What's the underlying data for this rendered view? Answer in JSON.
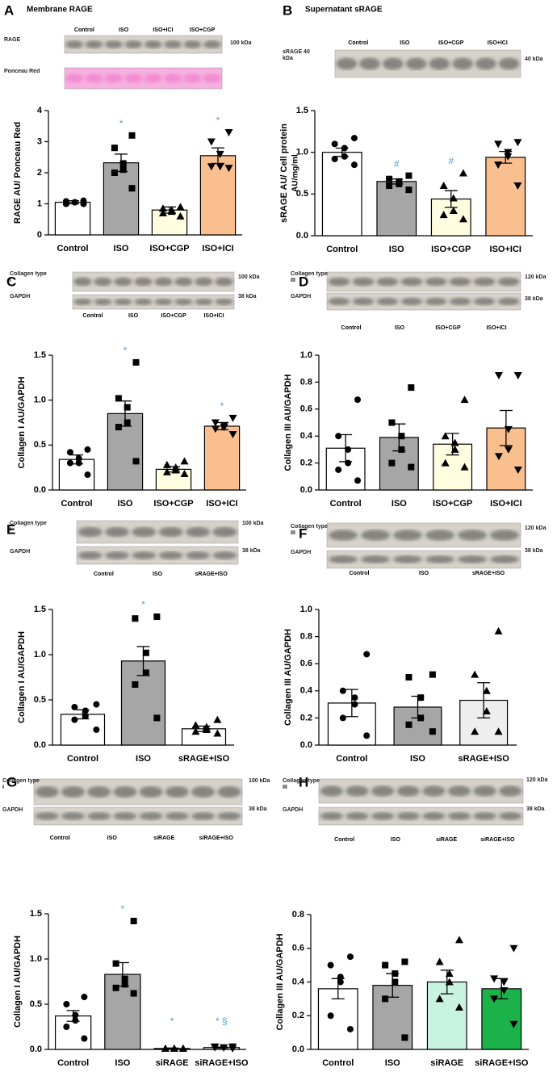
{
  "chart_data": [
    {
      "type": "bar",
      "panel": "A",
      "title": "Membrane RAGE",
      "ylabel": "RAGE AU/ Ponceau Red",
      "categories": [
        "Control",
        "ISO",
        "ISO+CGP",
        "ISO+ICI"
      ],
      "values": [
        1.05,
        2.32,
        0.8,
        2.55
      ],
      "errors": [
        0.05,
        0.28,
        0.1,
        0.25
      ],
      "points": [
        [
          1.1,
          1.08,
          1.05,
          1.05,
          1.0,
          1.0
        ],
        [
          3.2,
          2.8,
          2.3,
          2.1,
          2.0,
          1.5
        ],
        [
          0.9,
          0.85,
          0.8,
          0.75,
          0.7,
          0.6
        ],
        [
          3.3,
          3.0,
          2.6,
          2.2,
          2.2,
          2.15
        ]
      ],
      "colors": [
        "#ffffff",
        "#a6a6a6",
        "#fffde0",
        "#f9bf8f"
      ],
      "markers": [
        "circle",
        "square",
        "triangle",
        "triangle-down"
      ],
      "significance": [
        null,
        "*",
        null,
        "*"
      ],
      "ylim": [
        0,
        4
      ],
      "yticks": [
        0,
        1,
        2,
        3,
        4
      ],
      "blot": {
        "lanes": [
          "Control",
          "ISO",
          "ISO+ICI",
          "ISO+CGP"
        ],
        "bands": [
          "RAGE",
          "Ponceau Red"
        ],
        "sizes": [
          "100 kDa"
        ]
      }
    },
    {
      "type": "bar",
      "panel": "B",
      "title": "Supernatant sRAGE",
      "ylabel": "sRAGE AU/ Cell protein",
      "unit_label": "AU/mg/ml",
      "categories": [
        "Control",
        "ISO",
        "ISO+CGP",
        "ISO+ICI"
      ],
      "values": [
        1.0,
        0.65,
        0.44,
        0.94
      ],
      "errors": [
        0.05,
        0.03,
        0.1,
        0.07
      ],
      "points": [
        [
          1.17,
          1.1,
          1.05,
          0.95,
          0.92,
          0.85
        ],
        [
          0.72,
          0.68,
          0.65,
          0.62,
          0.6,
          0.55
        ],
        [
          0.75,
          0.6,
          0.45,
          0.3,
          0.25,
          0.2
        ],
        [
          1.12,
          1.1,
          1.0,
          0.95,
          0.85,
          0.6
        ]
      ],
      "colors": [
        "#ffffff",
        "#a6a6a6",
        "#fffde0",
        "#f9bf8f"
      ],
      "markers": [
        "circle",
        "square",
        "triangle",
        "triangle-down"
      ],
      "significance": [
        null,
        "#",
        "#",
        null
      ],
      "ylim": [
        0,
        1.5
      ],
      "yticks": [
        {
          "value": 0,
          "label": "0.0"
        },
        0.5,
        {
          "value": 1,
          "label": "1.0"
        },
        1.5
      ],
      "blot": {
        "lanes": [
          "Control",
          "ISO",
          "ISO+CGP",
          "ISO+ICI"
        ],
        "bands": [
          "sRAGE 40 kDa"
        ],
        "sizes": [
          "40 kDa"
        ]
      }
    },
    {
      "type": "bar",
      "panel": "C",
      "ylabel": "Collagen I AU/GAPDH",
      "categories": [
        "Control",
        "ISO",
        "ISO+CGP",
        "ISO+ICI"
      ],
      "values": [
        0.34,
        0.85,
        0.23,
        0.71
      ],
      "errors": [
        0.05,
        0.14,
        0.03,
        0.04
      ],
      "points": [
        [
          0.45,
          0.42,
          0.35,
          0.3,
          0.3,
          0.17
        ],
        [
          1.42,
          1.02,
          0.92,
          0.75,
          0.7,
          0.32
        ],
        [
          0.32,
          0.28,
          0.25,
          0.22,
          0.2,
          0.18
        ],
        [
          0.8,
          0.75,
          0.72,
          0.7,
          0.68,
          0.62
        ]
      ],
      "colors": [
        "#ffffff",
        "#a6a6a6",
        "#fffde0",
        "#f9bf8f"
      ],
      "markers": [
        "circle",
        "square",
        "triangle",
        "triangle-down"
      ],
      "significance": [
        null,
        "*",
        null,
        "*"
      ],
      "ylim": [
        0,
        1.5
      ],
      "yticks": [
        {
          "value": 0,
          "label": "0.0"
        },
        0.5,
        {
          "value": 1,
          "label": "1.0"
        },
        1.5
      ],
      "blot": {
        "lanes": [
          "Control",
          "ISO",
          "ISO+CGP",
          "ISO+ICI"
        ],
        "bands": [
          "Collagen type I",
          "GAPDH"
        ],
        "sizes": [
          "100 kDa",
          "38 kDa"
        ]
      }
    },
    {
      "type": "bar",
      "panel": "D",
      "ylabel": "Collagen III  AU/GAPDH",
      "categories": [
        "Control",
        "ISO",
        "ISO+CGP",
        "ISO+ICI"
      ],
      "values": [
        0.31,
        0.39,
        0.34,
        0.46
      ],
      "errors": [
        0.1,
        0.1,
        0.08,
        0.13
      ],
      "points": [
        [
          0.67,
          0.4,
          0.3,
          0.2,
          0.15,
          0.07
        ],
        [
          0.76,
          0.5,
          0.4,
          0.3,
          0.2,
          0.17
        ],
        [
          0.67,
          0.4,
          0.35,
          0.3,
          0.2,
          0.17
        ],
        [
          0.85,
          0.85,
          0.45,
          0.3,
          0.25,
          0.15
        ]
      ],
      "colors": [
        "#ffffff",
        "#a6a6a6",
        "#fffde0",
        "#f9bf8f"
      ],
      "markers": [
        "circle",
        "square",
        "triangle",
        "triangle-down"
      ],
      "ylim": [
        0,
        1
      ],
      "yticks": [
        {
          "value": 0,
          "label": "0.0"
        },
        0.2,
        0.4,
        0.6,
        0.8,
        {
          "value": 1,
          "label": "1.0"
        }
      ],
      "blot": {
        "lanes": [
          "Control",
          "ISO",
          "ISO+CGP",
          "ISO+ICI"
        ],
        "bands": [
          "Collagen type III",
          "GAPDH"
        ],
        "sizes": [
          "120 kDa",
          "38 kDa"
        ]
      }
    },
    {
      "type": "bar",
      "panel": "E",
      "ylabel": "Collagen I AU/GAPDH",
      "categories": [
        "Control",
        "ISO",
        "sRAGE+ISO"
      ],
      "values": [
        0.34,
        0.93,
        0.18
      ],
      "errors": [
        0.05,
        0.16,
        0.03
      ],
      "points": [
        [
          0.45,
          0.42,
          0.38,
          0.32,
          0.28,
          0.17
        ],
        [
          1.42,
          1.4,
          1.02,
          0.8,
          0.67,
          0.3
        ],
        [
          0.28,
          0.22,
          0.2,
          0.17,
          0.15,
          0.13
        ]
      ],
      "colors": [
        "#ffffff",
        "#a6a6a6",
        "#ffffff"
      ],
      "markers": [
        "circle",
        "square",
        "triangle"
      ],
      "significance": [
        null,
        "*",
        null
      ],
      "ylim": [
        0,
        1.5
      ],
      "yticks": [
        {
          "value": 0,
          "label": "0.0"
        },
        0.5,
        {
          "value": 1,
          "label": "1.0"
        },
        1.5
      ],
      "blot": {
        "lanes": [
          "Control",
          "ISO",
          "sRAGE+ISO"
        ],
        "bands": [
          "Collagen type I",
          "GAPDH"
        ],
        "sizes": [
          "100 kDa",
          "38 kDa"
        ]
      }
    },
    {
      "type": "bar",
      "panel": "F",
      "ylabel": "Collagen III  AU/GAPDH",
      "categories": [
        "Control",
        "ISO",
        "sRAGE+ISO"
      ],
      "values": [
        0.31,
        0.28,
        0.33
      ],
      "errors": [
        0.1,
        0.08,
        0.13
      ],
      "points": [
        [
          0.67,
          0.4,
          0.35,
          0.3,
          0.2,
          0.07
        ],
        [
          0.52,
          0.5,
          0.35,
          0.2,
          0.15,
          0.1
        ],
        [
          0.84,
          0.52,
          0.4,
          0.25,
          0.1,
          0.1
        ]
      ],
      "colors": [
        "#ffffff",
        "#a6a6a6",
        "#eeeeee"
      ],
      "markers": [
        "circle",
        "square",
        "triangle"
      ],
      "ylim": [
        0,
        1
      ],
      "yticks": [
        {
          "value": 0,
          "label": "0.0"
        },
        0.2,
        0.4,
        0.6,
        0.8,
        {
          "value": 1,
          "label": "1.0"
        }
      ],
      "blot": {
        "lanes": [
          "Control",
          "ISO",
          "sRAGE+ISO"
        ],
        "bands": [
          "Collagen type III",
          "GAPDH"
        ],
        "sizes": [
          "120 kDa",
          "38 kDa"
        ]
      }
    },
    {
      "type": "bar",
      "panel": "G",
      "ylabel": "Collagen I AU/GAPDH",
      "categories": [
        "Control",
        "ISO",
        "siRAGE",
        "siRAGE+ISO"
      ],
      "values": [
        0.37,
        0.83,
        0.01,
        0.02
      ],
      "errors": [
        0.06,
        0.13,
        0.005,
        0.005
      ],
      "points": [
        [
          0.58,
          0.5,
          0.38,
          0.32,
          0.25,
          0.12
        ],
        [
          1.42,
          0.95,
          0.78,
          0.72,
          0.68,
          0.62
        ],
        [
          0.01,
          0.01,
          0.01,
          0.01,
          0.01,
          0.01
        ],
        [
          0.03,
          0.03,
          0.02,
          0.02,
          0.02,
          0.01
        ]
      ],
      "colors": [
        "#ffffff",
        "#a6a6a6",
        "#ffffff",
        "#ffffff"
      ],
      "markers": [
        "circle",
        "square",
        "triangle",
        "triangle-down"
      ],
      "significance": [
        null,
        "*",
        "*",
        "*  §"
      ],
      "ylim": [
        0,
        1.5
      ],
      "yticks": [
        {
          "value": 0,
          "label": "0.0"
        },
        0.5,
        {
          "value": 1,
          "label": "1.0"
        },
        1.5
      ],
      "blot": {
        "lanes": [
          "Control",
          "ISO",
          "siRAGE",
          "siRAGE+ISO"
        ],
        "bands": [
          "Collagen type I",
          "GAPDH"
        ],
        "sizes": [
          "100 kDa",
          "38 kDa"
        ]
      }
    },
    {
      "type": "bar",
      "panel": "H",
      "ylabel": "Collagen III  AU/GAPDH",
      "categories": [
        "Control",
        "ISO",
        "siRAGE",
        "siRAGE+ISO"
      ],
      "values": [
        0.36,
        0.38,
        0.4,
        0.36
      ],
      "errors": [
        0.06,
        0.07,
        0.07,
        0.06
      ],
      "points": [
        [
          0.55,
          0.5,
          0.43,
          0.4,
          0.2,
          0.12
        ],
        [
          0.52,
          0.5,
          0.45,
          0.4,
          0.3,
          0.07
        ],
        [
          0.65,
          0.52,
          0.45,
          0.4,
          0.3,
          0.25
        ],
        [
          0.6,
          0.42,
          0.4,
          0.35,
          0.3,
          0.15
        ]
      ],
      "colors": [
        "#ffffff",
        "#a6a6a6",
        "#c9f3e1",
        "#1db14a"
      ],
      "markers": [
        "circle",
        "square",
        "triangle",
        "triangle-down"
      ],
      "ylim": [
        0,
        0.8
      ],
      "yticks": [
        {
          "value": 0,
          "label": "0.0"
        },
        0.2,
        0.4,
        0.6,
        0.8
      ],
      "blot": {
        "lanes": [
          "Control",
          "ISO",
          "siRAGE",
          "siRAGE+ISO"
        ],
        "bands": [
          "Collagen type III",
          "GAPDH"
        ],
        "sizes": [
          "120 kDa",
          "38 kDa"
        ]
      }
    }
  ]
}
